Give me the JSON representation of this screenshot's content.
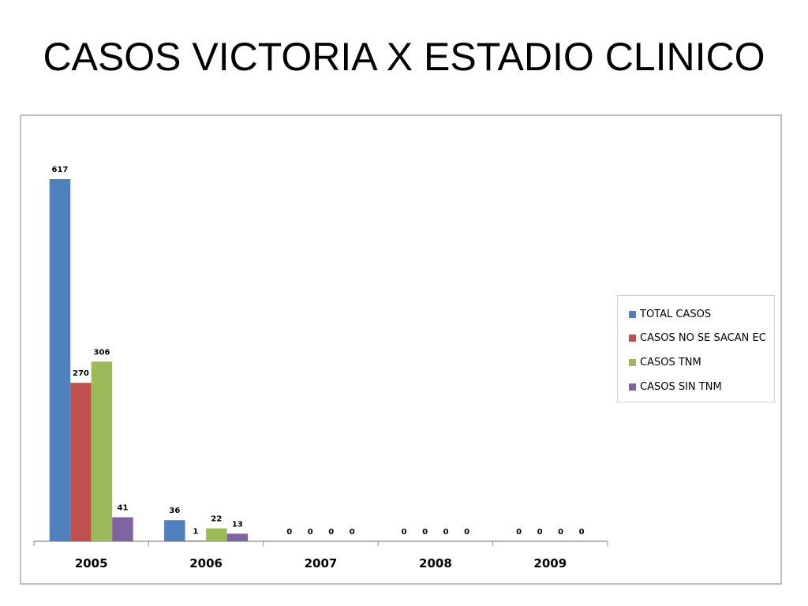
{
  "slide": {
    "title": "CASOS VICTORIA X ESTADIO CLINICO"
  },
  "chart_data": {
    "type": "bar",
    "title": "",
    "xlabel": "",
    "ylabel": "",
    "categories": [
      "2005",
      "2006",
      "2007",
      "2008",
      "2009"
    ],
    "series": [
      {
        "name": "TOTAL CASOS",
        "color": "#4f81bd",
        "values": [
          617,
          36,
          0,
          0,
          0
        ]
      },
      {
        "name": "CASOS NO SE SACAN EC",
        "color": "#c0504d",
        "values": [
          270,
          1,
          0,
          0,
          0
        ]
      },
      {
        "name": "CASOS TNM",
        "color": "#9bbb59",
        "values": [
          306,
          22,
          0,
          0,
          0
        ]
      },
      {
        "name": "CASOS SIN TNM",
        "color": "#8064a2",
        "values": [
          41,
          13,
          0,
          0,
          0
        ]
      }
    ],
    "data_labels": true,
    "ylim": [
      0,
      700
    ],
    "y_axis_visible": false,
    "grid": false,
    "legend_position": "right"
  }
}
